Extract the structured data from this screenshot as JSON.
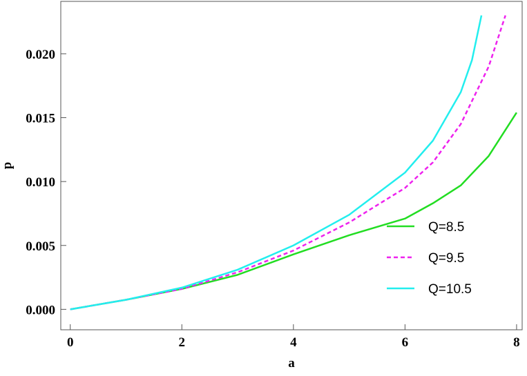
{
  "chart_data": {
    "type": "line",
    "xlabel": "a",
    "ylabel": "p",
    "xlim": [
      -0.17,
      8.1
    ],
    "ylim": [
      -0.0016,
      0.0241
    ],
    "xticks": [
      0,
      2,
      4,
      6,
      8
    ],
    "yticks": [
      {
        "value": 0,
        "label": "0.000"
      },
      {
        "value": 0.005,
        "label": "0.005"
      },
      {
        "value": 0.01,
        "label": "0.010"
      },
      {
        "value": 0.015,
        "label": "0.015"
      },
      {
        "value": 0.02,
        "label": "0.020"
      }
    ],
    "legend": "lower right",
    "series": [
      {
        "name": "Q=8.5",
        "color": "#22dd22",
        "dash": false,
        "x": [
          0,
          1,
          2,
          3,
          4,
          5,
          6,
          6.5,
          7,
          7.5,
          8
        ],
        "values": [
          0,
          0.00075,
          0.0016,
          0.0027,
          0.0043,
          0.0058,
          0.0071,
          0.0083,
          0.0097,
          0.012,
          0.0154
        ]
      },
      {
        "name": "Q=9.5",
        "color": "#ee22ee",
        "dash": true,
        "x": [
          0,
          1,
          2,
          3,
          4,
          5,
          6,
          6.5,
          7,
          7.5,
          7.8
        ],
        "values": [
          0,
          0.00075,
          0.0016,
          0.0029,
          0.0046,
          0.0068,
          0.0095,
          0.0115,
          0.0145,
          0.019,
          0.023
        ]
      },
      {
        "name": "Q=10.5",
        "color": "#22eeee",
        "dash": false,
        "x": [
          0,
          1,
          2,
          3,
          4,
          5,
          6,
          6.5,
          7,
          7.2,
          7.37
        ],
        "values": [
          0,
          0.00075,
          0.0017,
          0.0031,
          0.005,
          0.0074,
          0.0107,
          0.0132,
          0.017,
          0.0195,
          0.023
        ]
      }
    ]
  }
}
